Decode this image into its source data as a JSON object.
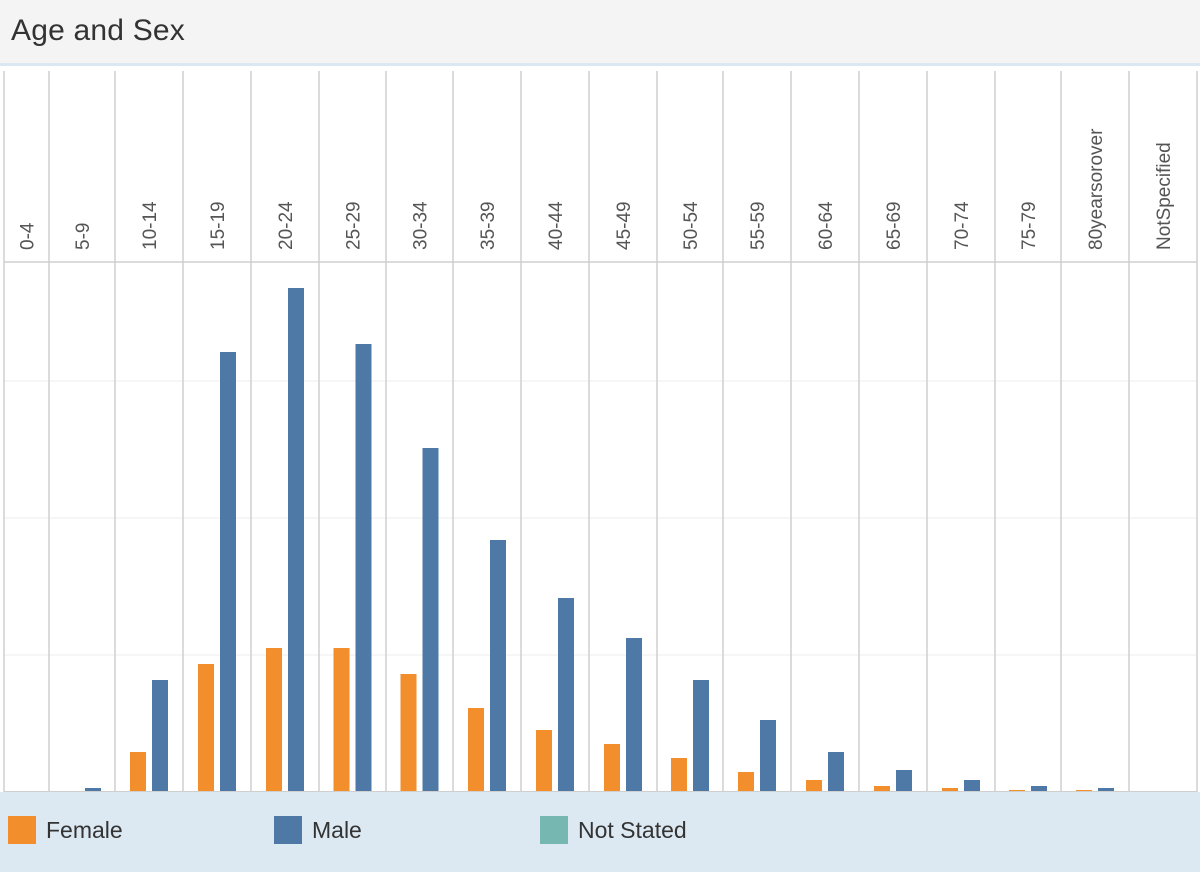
{
  "title": "Age and Sex",
  "colors": {
    "female": "#f28e2b",
    "male": "#4e79a7",
    "not_stated": "#76b7b2"
  },
  "legend": [
    {
      "label": "Female",
      "color": "#f28e2b"
    },
    {
      "label": "Male",
      "color": "#4e79a7"
    },
    {
      "label": "Not Stated",
      "color": "#76b7b2"
    }
  ],
  "chart_data": {
    "type": "bar",
    "title": "Age and Sex",
    "xlabel": "",
    "ylabel": "",
    "categories": [
      "0-4",
      "5-9",
      "10-14",
      "15-19",
      "20-24",
      "25-29",
      "30-34",
      "35-39",
      "40-44",
      "45-49",
      "50-54",
      "55-59",
      "60-64",
      "65-69",
      "70-74",
      "75-79",
      "80yearsorover",
      "NotSpecified"
    ],
    "series": [
      {
        "name": "Female",
        "values": [
          0,
          0,
          40,
          128,
          144,
          144,
          118,
          84,
          62,
          48,
          34,
          20,
          12,
          6,
          4,
          2,
          2,
          0
        ]
      },
      {
        "name": "Male",
        "values": [
          0,
          4,
          112,
          440,
          504,
          448,
          344,
          252,
          194,
          154,
          112,
          72,
          40,
          22,
          12,
          6,
          4,
          0
        ]
      },
      {
        "name": "Not Stated",
        "values": [
          0,
          0,
          0,
          0,
          0,
          0,
          0,
          0,
          0,
          0,
          0,
          0,
          0,
          0,
          0,
          0,
          0,
          0
        ]
      }
    ],
    "ylim": [
      0,
      530
    ],
    "gridlines": [
      137,
      274,
      411
    ],
    "grid": true,
    "legend_position": "bottom"
  }
}
